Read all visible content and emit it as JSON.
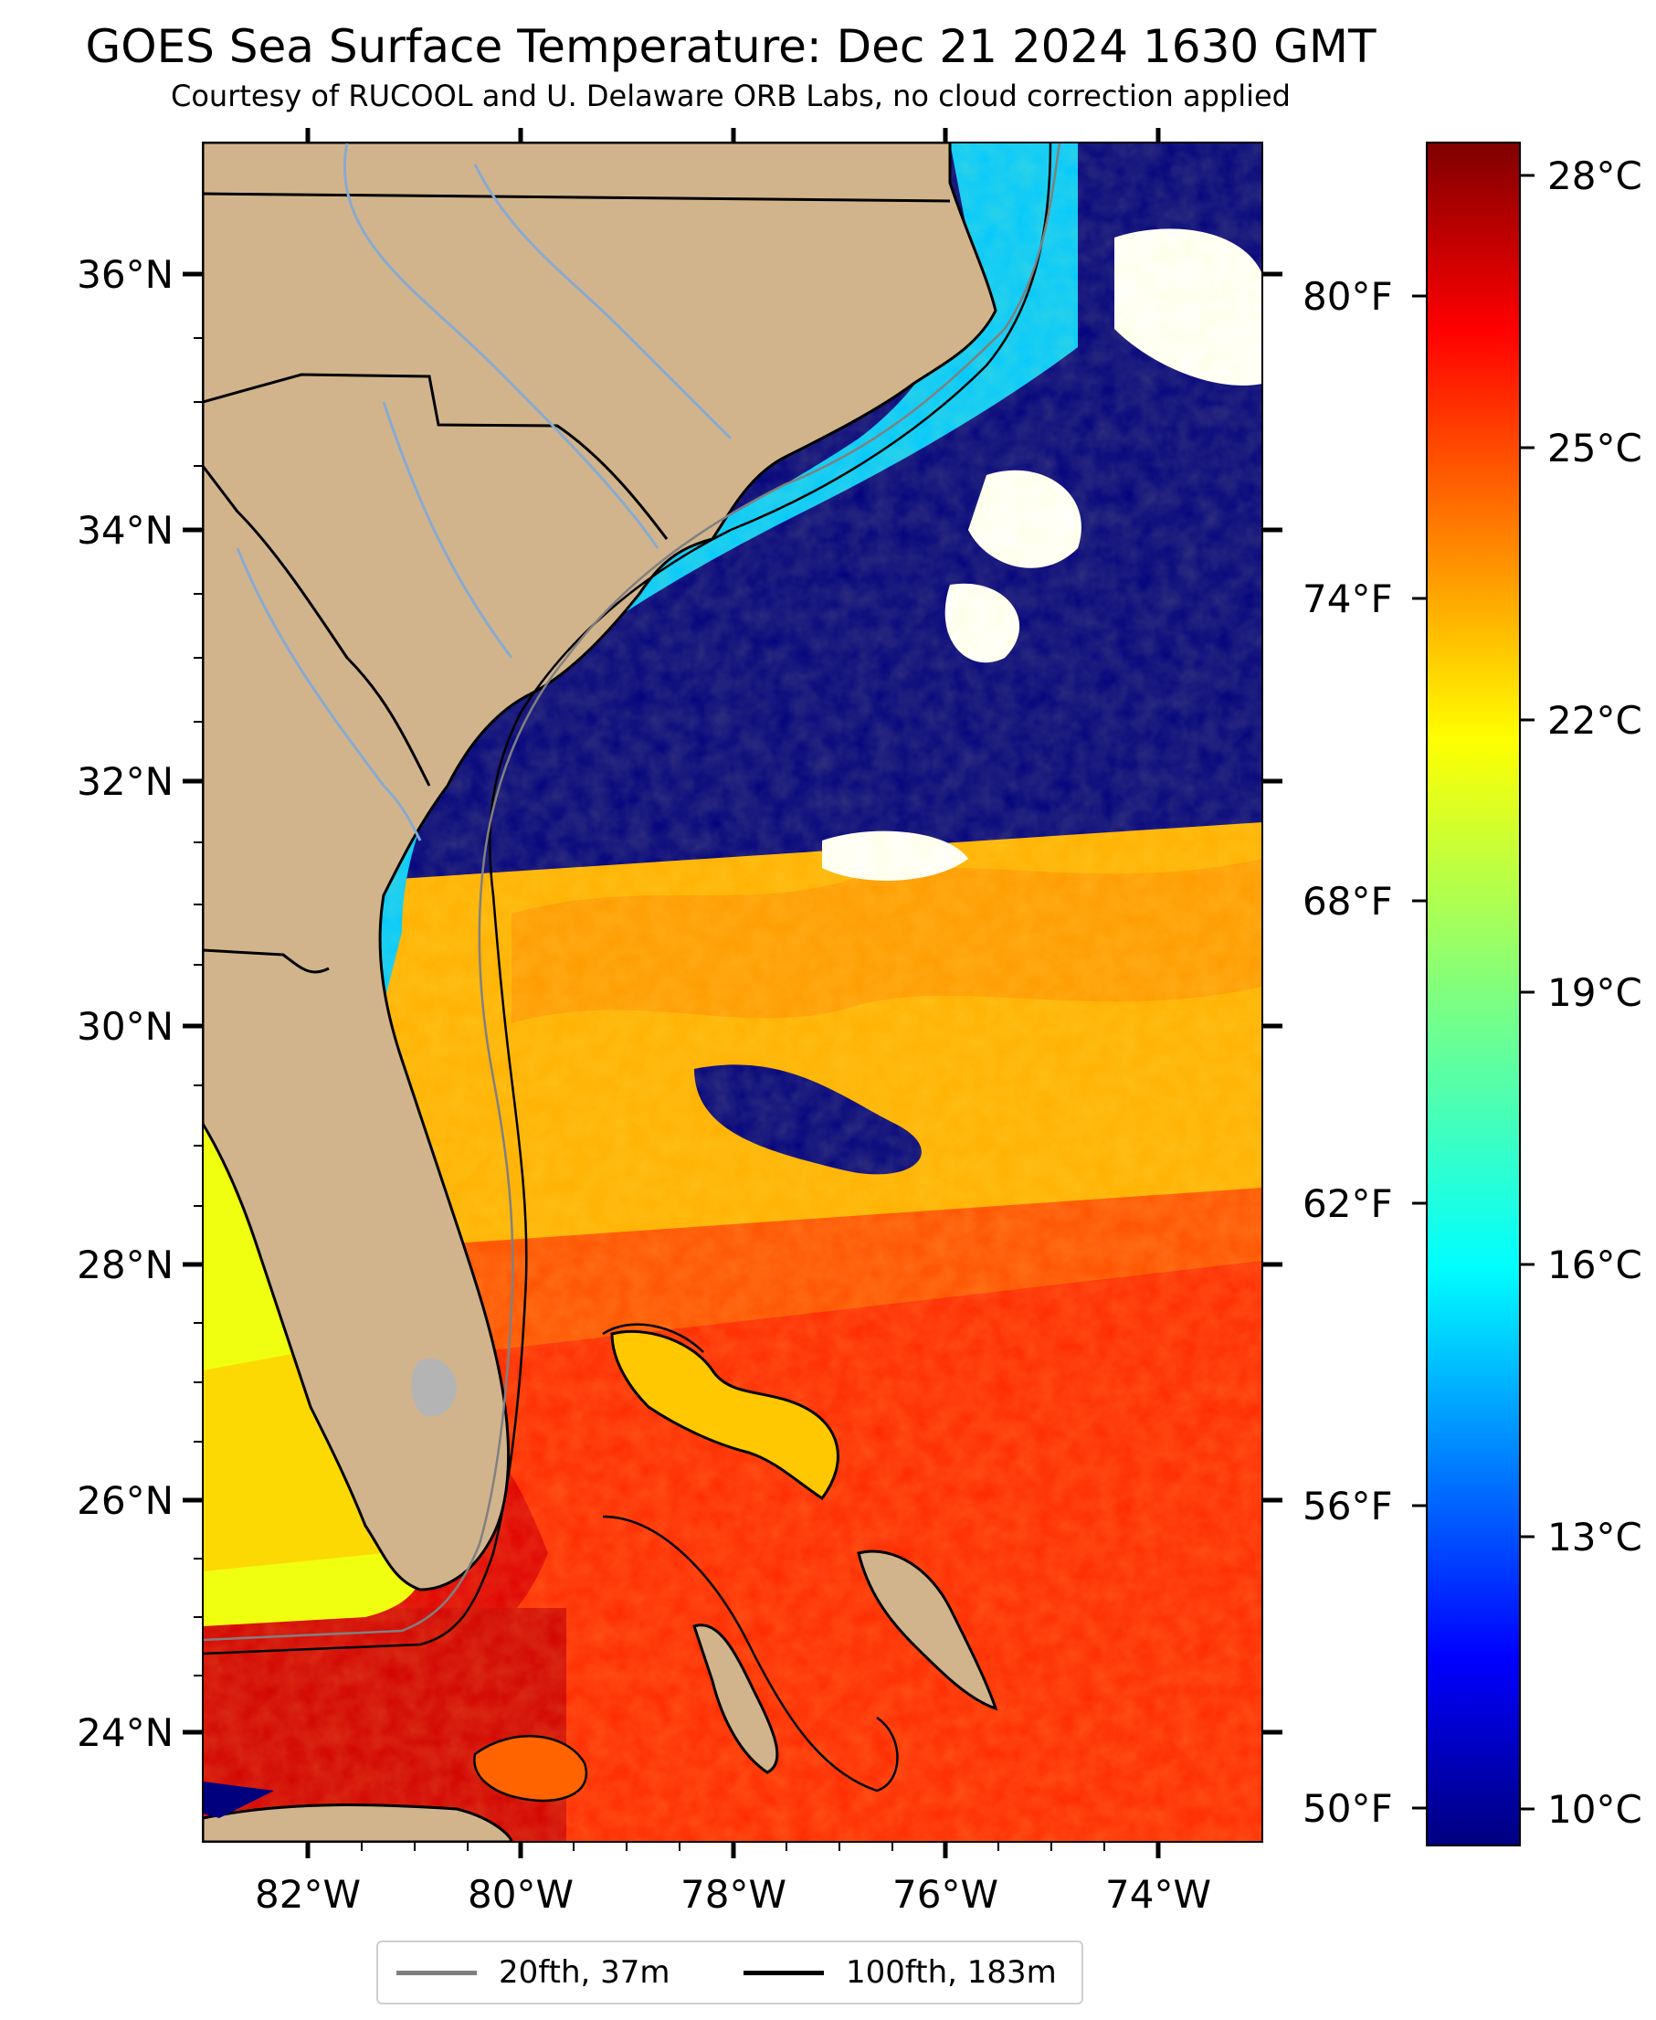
{
  "title": "GOES Sea Surface Temperature: Dec 21 2024 1630 GMT",
  "subtitle": "Courtesy of RUCOOL and U. Delaware ORB Labs, no cloud correction applied",
  "map": {
    "lat_ticks": [
      "36°N",
      "34°N",
      "32°N",
      "30°N",
      "28°N",
      "26°N",
      "24°N"
    ],
    "lon_ticks": [
      "82°W",
      "80°W",
      "78°W",
      "76°W",
      "74°W"
    ],
    "land_color": "#d2b48c",
    "cloud_color": "#ffffff"
  },
  "colorbar": {
    "celsius_ticks": [
      "28°C",
      "25°C",
      "22°C",
      "19°C",
      "16°C",
      "13°C",
      "10°C"
    ],
    "fahrenheit_ticks": [
      "80°F",
      "74°F",
      "68°F",
      "62°F",
      "56°F",
      "50°F"
    ],
    "colormap": "jet",
    "colors": [
      "#00007f",
      "#0000ff",
      "#007fff",
      "#00ffff",
      "#7fff7f",
      "#ffff00",
      "#ff7f00",
      "#ff0000",
      "#7f0000"
    ]
  },
  "legend": {
    "items": [
      {
        "label": "20fth, 37m",
        "color": "#808080"
      },
      {
        "label": "100fth, 183m",
        "color": "#000000"
      }
    ]
  }
}
